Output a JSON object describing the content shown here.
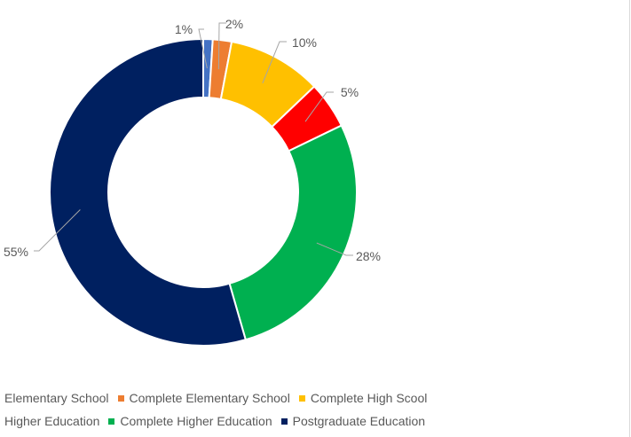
{
  "chart_data": {
    "type": "pie",
    "subtype": "donut",
    "categories": [
      "Elementary School",
      "Complete Elementary School",
      "Complete High Scool",
      "Higher Education",
      "Complete Higher Education",
      "Postgraduate Education"
    ],
    "values": [
      1,
      2,
      10,
      5,
      28,
      55
    ],
    "data_labels": [
      "1%",
      "2%",
      "10%",
      "5%",
      "28%",
      "55%"
    ],
    "colors": [
      "#4472C4",
      "#ED7D31",
      "#FFC000",
      "#FF0000",
      "#00B050",
      "#002060"
    ],
    "title": "",
    "legend_position": "bottom"
  },
  "legend": {
    "rows": [
      [
        {
          "label": "Elementary School",
          "color": "#4472C4"
        },
        {
          "label": "Complete Elementary School",
          "color": "#ED7D31"
        },
        {
          "label": "Complete High Scool",
          "color": "#FFC000"
        }
      ],
      [
        {
          "label": "Higher Education",
          "color": "#FF0000"
        },
        {
          "label": "Complete Higher Education",
          "color": "#00B050"
        },
        {
          "label": "Postgraduate Education",
          "color": "#002060"
        }
      ]
    ]
  }
}
